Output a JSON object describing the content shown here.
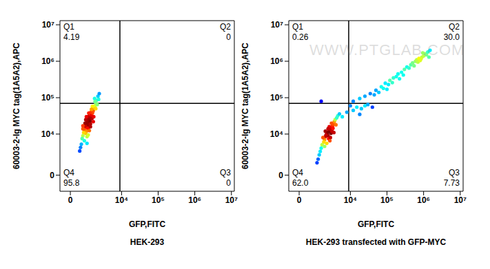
{
  "chart_data": [
    {
      "type": "scatter",
      "subtitle": "HEK-293",
      "x_label": "GFP,FITC",
      "y_label": "60003-2-Ig MYC tag(1A5A2),APC",
      "log": true,
      "xlim": [
        -560,
        12000000
      ],
      "ylim": [
        -1800,
        13000000
      ],
      "xticks": [
        0,
        {
          "value": 10000,
          "label": "10⁴"
        },
        {
          "value": 100000,
          "label": "10⁵"
        },
        {
          "value": 1000000,
          "label": "10⁶"
        },
        {
          "value": 10000000,
          "label": "10⁷"
        }
      ],
      "yticks": [
        0,
        {
          "value": 10000,
          "label": "10⁴"
        },
        {
          "value": 100000,
          "label": "10⁵"
        },
        {
          "value": 1000000,
          "label": "10⁶"
        },
        {
          "value": 10000000,
          "label": "10⁷"
        }
      ],
      "gates": {
        "x": 9000,
        "y": 70000
      },
      "quadrants": {
        "names": [
          "Q1",
          "Q2",
          "Q3",
          "Q4"
        ],
        "values": [
          4.19,
          0,
          0,
          95.8
        ],
        "value_labels": [
          "4.19",
          "0",
          "0",
          "95.8"
        ]
      },
      "x": [
        950,
        1100,
        1000,
        1200,
        900,
        1300,
        1050,
        1150,
        850,
        1250,
        1000,
        1100,
        1350,
        800,
        950,
        1200,
        1400,
        1050,
        900,
        1150,
        1500,
        1300,
        750,
        700,
        1000,
        1600,
        1450,
        850,
        1250,
        1700,
        1550,
        650,
        800,
        1100,
        1800,
        1350,
        600,
        900,
        1200,
        1650,
        1900,
        2000,
        1750,
        2200,
        1500,
        700,
        550,
        1000,
        2100,
        1400,
        2400,
        1800,
        500,
        1300,
        950,
        1600,
        1900,
        700,
        1150,
        2300
      ],
      "y": [
        19500,
        21000,
        17000,
        24000,
        15000,
        26000,
        20000,
        18000,
        16500,
        22500,
        23000,
        14500,
        30000,
        13000,
        12000,
        28000,
        33000,
        26000,
        10500,
        31000,
        38000,
        19000,
        11000,
        9000,
        8500,
        45000,
        27000,
        20000,
        35000,
        52000,
        42000,
        7500,
        6500,
        9500,
        60000,
        40000,
        5200,
        25000,
        12500,
        30000,
        72000,
        85000,
        95000,
        110000,
        58000,
        14000,
        4200,
        5500,
        65000,
        48000,
        130000,
        78000,
        3300,
        16000,
        30000,
        22000,
        50000,
        17000,
        38000,
        90000
      ]
    },
    {
      "type": "scatter",
      "subtitle": "HEK-293 transfected with GFP-MYC",
      "x_label": "GFP,FITC",
      "y_label": "60003-2-Ig MYC tag(1A5A2),APC",
      "log": true,
      "annotations": [
        "WWW.PTGLAB.COM"
      ],
      "xlim": [
        -560,
        12000000
      ],
      "ylim": [
        -1800,
        13000000
      ],
      "xticks": [
        0,
        {
          "value": 10000,
          "label": "10⁴"
        },
        {
          "value": 100000,
          "label": "10⁵"
        },
        {
          "value": 1000000,
          "label": "10⁶"
        },
        {
          "value": 10000000,
          "label": "10⁷"
        }
      ],
      "yticks": [
        0,
        {
          "value": 10000,
          "label": "10⁴"
        },
        {
          "value": 100000,
          "label": "10⁵"
        },
        {
          "value": 1000000,
          "label": "10⁶"
        },
        {
          "value": 10000000,
          "label": "10⁷"
        }
      ],
      "gates": {
        "x": 9000,
        "y": 70000
      },
      "quadrants": {
        "names": [
          "Q1",
          "Q2",
          "Q3",
          "Q4"
        ],
        "values": [
          0.26,
          30,
          7.73,
          62
        ],
        "value_labels": [
          "0.26",
          "30.0",
          "7.73",
          "62.0"
        ]
      },
      "x": [
        2500,
        2200,
        2800,
        2000,
        3000,
        2400,
        2600,
        1900,
        3200,
        2300,
        2700,
        1800,
        3400,
        2100,
        2900,
        1600,
        3600,
        2500,
        3100,
        1500,
        3800,
        2000,
        2600,
        1400,
        4200,
        2800,
        1700,
        3300,
        1300,
        4500,
        2200,
        3500,
        1200,
        5000,
        2400,
        3000,
        1100,
        1900,
        4000,
        2700,
        6000,
        8000,
        12000,
        15000,
        20000,
        25000,
        18000,
        30000,
        10000,
        40000,
        12000,
        18000,
        25000,
        35000,
        50000,
        45000,
        70000,
        90000,
        80000,
        120000,
        150000,
        110000,
        200000,
        250000,
        180000,
        300000,
        350000,
        400000,
        450000,
        500000,
        550000,
        600000,
        650000,
        700000,
        750000,
        800000,
        900000,
        1000000,
        850000,
        1100000,
        1200000,
        1300000,
        950000,
        1500000,
        1400000,
        60000,
        100000,
        140000,
        220000,
        280000,
        1500
      ],
      "y": [
        11500,
        10000,
        13000,
        8500,
        15000,
        9000,
        12500,
        7000,
        17000,
        11000,
        14000,
        6000,
        19000,
        9500,
        10500,
        5000,
        22000,
        7500,
        12000,
        4000,
        25000,
        12000,
        16000,
        3200,
        28000,
        8000,
        8000,
        14500,
        2500,
        32000,
        5500,
        11000,
        1800,
        36000,
        14000,
        20000,
        1300,
        4500,
        18000,
        6500,
        30000,
        40000,
        45000,
        55000,
        50000,
        60000,
        35000,
        65000,
        60000,
        55000,
        80000,
        95000,
        110000,
        130000,
        160000,
        120000,
        200000,
        250000,
        180000,
        300000,
        350000,
        230000,
        450000,
        500000,
        380000,
        600000,
        700000,
        650000,
        800000,
        900000,
        750000,
        1000000,
        1100000,
        950000,
        1200000,
        1050000,
        1300000,
        1400000,
        1150000,
        1600000,
        1500000,
        1800000,
        1700000,
        2000000,
        1300000,
        140000,
        170000,
        260000,
        330000,
        420000,
        80000
      ]
    }
  ]
}
